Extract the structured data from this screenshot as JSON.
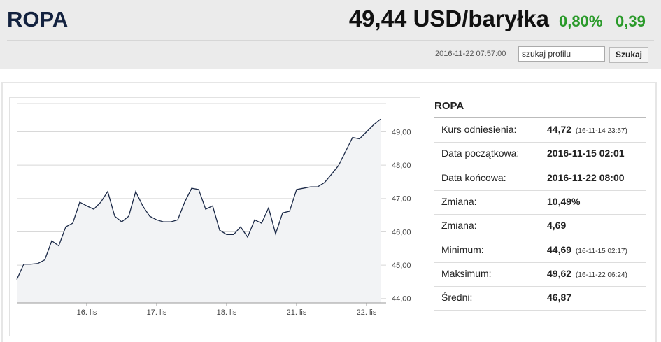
{
  "header": {
    "title": "ROPA",
    "price": "49,44 USD/baryłka",
    "change_percent": "0,80%",
    "change_value": "0,39",
    "datetime": "2016-11-22 07:57:00",
    "search_placeholder": "szukaj profilu",
    "search_button": "Szukaj"
  },
  "chart_data": {
    "type": "line",
    "color": "#1c2a48",
    "fill": "#f2f3f5",
    "grid": true,
    "categories": [
      null,
      null,
      null,
      null,
      null,
      null,
      null,
      null,
      null,
      null,
      "16. lis",
      null,
      null,
      null,
      null,
      null,
      null,
      null,
      null,
      null,
      "17. lis",
      null,
      null,
      null,
      null,
      null,
      null,
      null,
      null,
      null,
      "18. lis",
      null,
      null,
      null,
      null,
      null,
      null,
      null,
      null,
      null,
      "21. lis",
      null,
      null,
      null,
      null,
      null,
      null,
      null,
      null,
      null,
      "22. lis",
      null,
      null
    ],
    "values": [
      44.57,
      45.03,
      45.03,
      45.05,
      45.16,
      45.73,
      45.58,
      46.15,
      46.26,
      46.89,
      46.78,
      46.68,
      46.89,
      47.21,
      46.47,
      46.3,
      46.47,
      47.21,
      46.78,
      46.47,
      46.36,
      46.3,
      46.3,
      46.36,
      46.89,
      47.31,
      47.27,
      46.68,
      46.78,
      46.05,
      45.92,
      45.92,
      46.15,
      45.84,
      46.36,
      46.26,
      46.72,
      45.94,
      46.57,
      46.62,
      47.27,
      47.31,
      47.35,
      47.35,
      47.48,
      47.73,
      47.99,
      48.41,
      48.83,
      48.79,
      49.0,
      49.21,
      49.38
    ],
    "ylim": [
      43.87,
      49.85
    ],
    "yticks": [
      {
        "value": 44,
        "label": "44,00"
      },
      {
        "value": 45,
        "label": "45,00"
      },
      {
        "value": 46,
        "label": "46,00"
      },
      {
        "value": 47,
        "label": "47,00"
      },
      {
        "value": 48,
        "label": "48,00"
      },
      {
        "value": 49,
        "label": "49,00"
      }
    ]
  },
  "table": {
    "title": "ROPA",
    "rows": [
      [
        "Kurs odniesienia:",
        "44,72",
        "(16-11-14 23:57)"
      ],
      [
        "Data początkowa:",
        "2016-11-15 02:01"
      ],
      [
        "Data końcowa:",
        "2016-11-22 08:00"
      ],
      [
        "Zmiana:",
        "10,49%"
      ],
      [
        "Zmiana:",
        "4,69"
      ],
      [
        "Minimum:",
        "44,69",
        "(16-11-15 02:17)"
      ],
      [
        "Maksimum:",
        "49,62",
        "(16-11-22 06:24)"
      ],
      [
        "Średni:",
        "46,87"
      ]
    ]
  }
}
